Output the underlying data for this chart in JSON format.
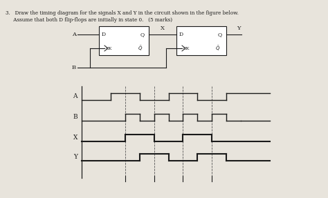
{
  "bg_color": "#e8e4dc",
  "line_color": "#1a1a1a",
  "title1": "3.   Draw the timing diagram for the signals X and Y in the circuit shown in the figure below.",
  "title2": "     Assume that both D flip-flops are initially in state 0.   (5 marks)",
  "signals": {
    "A": {
      "times": [
        0,
        1,
        1,
        2,
        2,
        3,
        3,
        4,
        4,
        5,
        5,
        6.5
      ],
      "vals": [
        0,
        0,
        1,
        1,
        0,
        0,
        1,
        1,
        0,
        0,
        1,
        1
      ]
    },
    "B": {
      "times": [
        0,
        1.5,
        1.5,
        2,
        2,
        2.5,
        2.5,
        3,
        3,
        3.5,
        3.5,
        4,
        4,
        4.5,
        4.5,
        5,
        5,
        5.5,
        5.5,
        6.5
      ],
      "vals": [
        0,
        0,
        1,
        1,
        0,
        0,
        1,
        1,
        0,
        0,
        1,
        1,
        0,
        0,
        1,
        1,
        0,
        0,
        0,
        0
      ]
    },
    "X": {
      "times": [
        0,
        1.5,
        1.5,
        2.5,
        2.5,
        3.5,
        3.5,
        4.5,
        4.5,
        6.5
      ],
      "vals": [
        0,
        0,
        1,
        1,
        0,
        0,
        1,
        1,
        0,
        0
      ]
    },
    "Y": {
      "times": [
        0,
        2,
        2,
        3,
        3,
        4,
        4,
        5,
        5,
        6.5
      ],
      "vals": [
        0,
        0,
        1,
        1,
        0,
        0,
        1,
        1,
        0,
        0
      ]
    }
  },
  "dashed_times": [
    1.5,
    2.5,
    3.5,
    4.5
  ],
  "tick_times": [
    1.5,
    2.5,
    3.5,
    4.5
  ],
  "signal_order": [
    "A",
    "B",
    "X",
    "Y"
  ]
}
